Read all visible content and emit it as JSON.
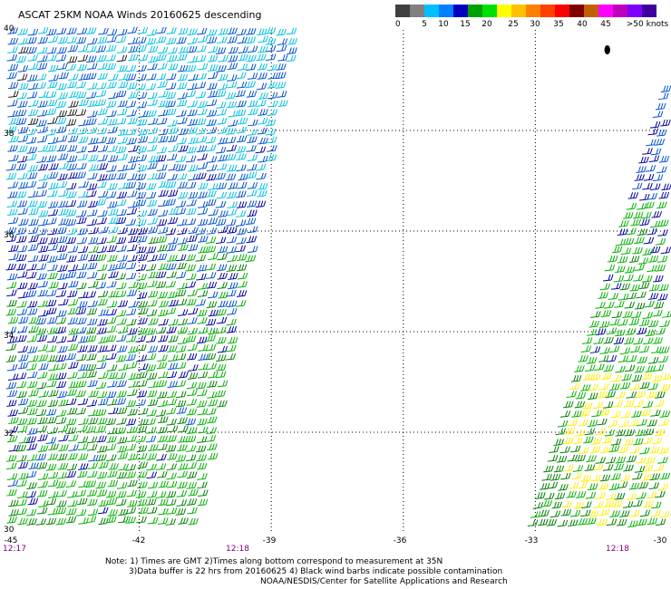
{
  "title": "ASCAT 25KM NOAA Winds 20160625 descending",
  "legend": {
    "swatches": [
      "#404040",
      "#808080",
      "#00c0ff",
      "#0080ff",
      "#0000c0",
      "#00a000",
      "#00e000",
      "#ffff00",
      "#ffc000",
      "#ff8000",
      "#ff4000",
      "#ff0000",
      "#800000",
      "#c06000",
      "#ff00ff",
      "#c000c0",
      "#8000ff",
      "#4000a0"
    ],
    "labels": [
      "0",
      "5",
      "10",
      "15",
      "20",
      "25",
      "30",
      "35",
      "40",
      "45",
      ">50 knots"
    ]
  },
  "map": {
    "lat_labels": [
      "40",
      "38",
      "36",
      "34",
      "32",
      "30"
    ],
    "lon_labels": [
      "-45",
      "-42",
      "-39",
      "-36",
      "-33",
      "-30"
    ],
    "lat_range": [
      30,
      40
    ],
    "lon_range": [
      -45,
      -30
    ],
    "pass_times": [
      "12:17",
      "12:18",
      "12:18"
    ],
    "speed_colors": {
      "calm": "#202020",
      "light": "#00c0e0",
      "moderate": "#0050d0",
      "fresh_dark": "#0000a0",
      "strong": "#00b000",
      "green_dark": "#008000",
      "high": "#ffee00"
    }
  },
  "notes": {
    "line1": "Note: 1) Times are GMT 2)Times along bottom correspond to measurement at 35N",
    "line2": "3)Data buffer is 22 hrs from 20160625 4) Black wind barbs indicate possible contamination",
    "line3": "NOAA/NESDIS/Center for Satellite Applications and Research"
  }
}
